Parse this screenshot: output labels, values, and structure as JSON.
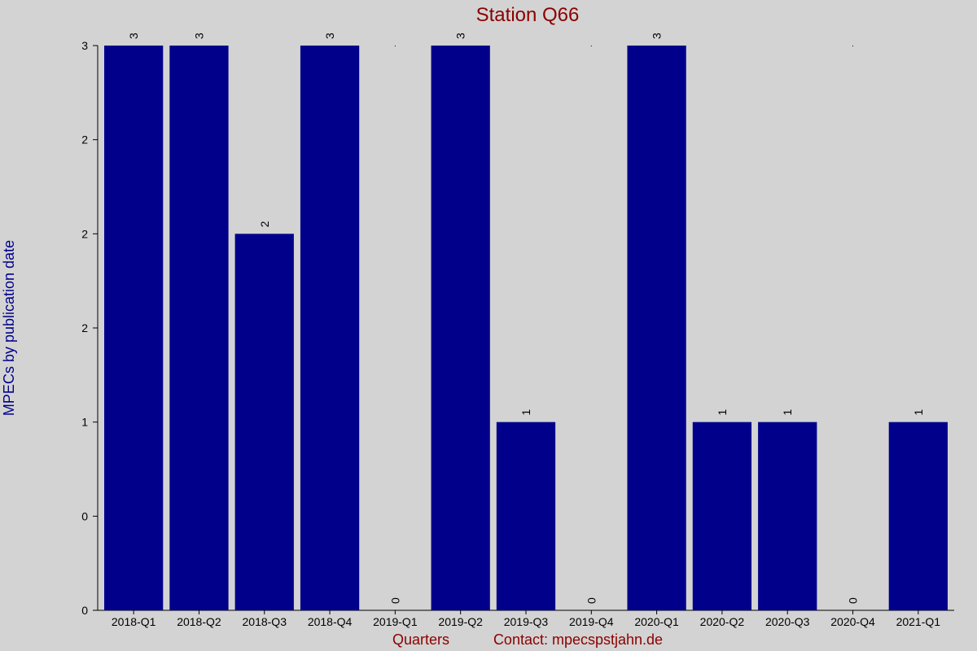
{
  "colors": {
    "background": "#d3d3d3",
    "bar": "#00008b",
    "title": "#8b0000",
    "ylabel": "#00008b",
    "footer": "#8b0000"
  },
  "chart_data": {
    "type": "bar",
    "title": "Station Q66",
    "xlabel": "Quarters",
    "ylabel": "MPECs by publication date",
    "footer_contact": "Contact: mpecspstjahn.de",
    "categories": [
      "2018-Q1",
      "2018-Q2",
      "2018-Q3",
      "2018-Q4",
      "2019-Q1",
      "2019-Q2",
      "2019-Q3",
      "2019-Q4",
      "2020-Q1",
      "2020-Q2",
      "2020-Q3",
      "2020-Q4",
      "2021-Q1"
    ],
    "values": [
      3,
      3,
      2,
      3,
      0,
      3,
      1,
      0,
      3,
      1,
      1,
      0,
      1
    ],
    "data_labels": [
      "3",
      "3",
      "2",
      "3",
      "0",
      "3",
      "1",
      "0",
      "3",
      "1",
      "1",
      "0",
      "1"
    ],
    "xlabels_shown": [
      "2018-Q1",
      "2018-Q2",
      "2018-Q3",
      "2018-Q4",
      "2019-Q1",
      "2019-Q2",
      "2019-Q3",
      "2019-Q4",
      "2020-Q1",
      "2020-Q2",
      "2020-Q3",
      "2020-Q4",
      "2021-Q1"
    ],
    "ylim": [
      0,
      3
    ],
    "yticks": [
      {
        "value": 0,
        "label": "0"
      },
      {
        "value": 0.5,
        "label": "0"
      },
      {
        "value": 1,
        "label": "1"
      },
      {
        "value": 1.5,
        "label": "2"
      },
      {
        "value": 2,
        "label": "2"
      },
      {
        "value": 2.5,
        "label": "2"
      },
      {
        "value": 3,
        "label": "3"
      }
    ],
    "grid": false,
    "legend": "none"
  }
}
